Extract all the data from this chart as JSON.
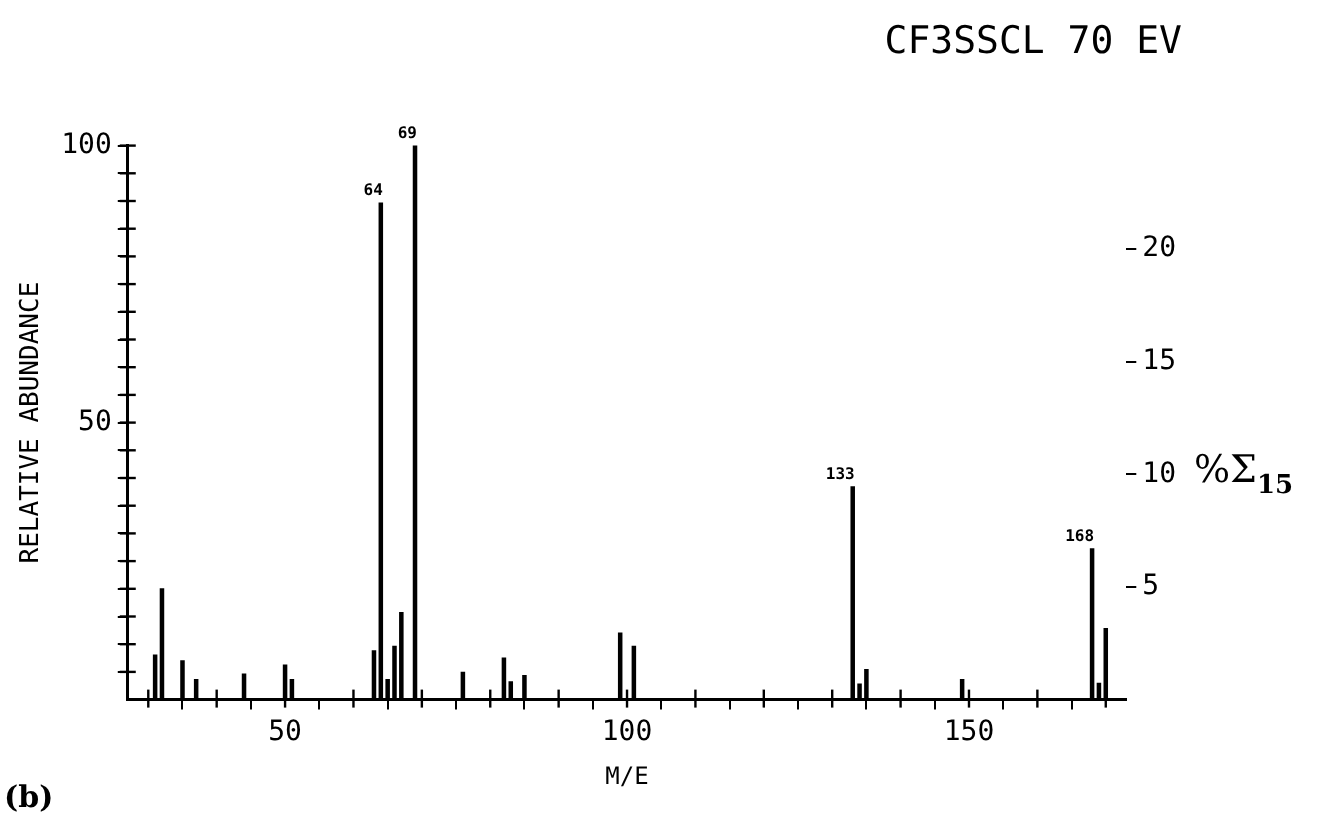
{
  "chart_data": {
    "type": "bar",
    "title": "CF3SSCL 70 EV",
    "xlabel": "M/E",
    "ylabel": "RELATIVE ABUNDANCE",
    "y2label": "%Σ$_{15}$",
    "annotations": [
      "(b)",
      {
        "text": "64",
        "x": 64,
        "y": 89.6
      },
      {
        "text": "69",
        "x": 69,
        "y": 100
      },
      {
        "text": "133",
        "x": 133,
        "y": 38.4
      },
      {
        "text": "168",
        "x": 168,
        "y": 27.2
      }
    ],
    "x": [
      31,
      32,
      35,
      37,
      44,
      50,
      51,
      63,
      64,
      65,
      66,
      67,
      69,
      76,
      82,
      83,
      85,
      99,
      101,
      133,
      134,
      135,
      149,
      168,
      169,
      170
    ],
    "values": [
      8,
      20,
      7,
      3.6,
      4.6,
      6.2,
      3.6,
      8.8,
      89.6,
      3.6,
      9.6,
      15.7,
      100,
      4.9,
      7.5,
      3.2,
      4.3,
      12,
      9.6,
      38.4,
      2.8,
      5.4,
      3.6,
      27.2,
      2.9,
      12.8
    ],
    "color": "#000000",
    "xlim": [
      27,
      173
    ],
    "xticks": [
      {
        "value": 30,
        "label": null
      },
      {
        "value": 40,
        "label": null
      },
      50,
      {
        "value": 60,
        "label": null
      },
      {
        "value": 70,
        "label": null
      },
      {
        "value": 80,
        "label": null
      },
      {
        "value": 90,
        "label": null
      },
      100,
      {
        "value": 110,
        "label": null
      },
      {
        "value": 120,
        "label": null
      },
      {
        "value": 130,
        "label": null
      },
      {
        "value": 140,
        "label": null
      },
      150,
      {
        "value": 160,
        "label": null
      },
      {
        "value": 170,
        "label": null
      }
    ],
    "ylim": [
      0,
      100
    ],
    "yticks": [
      {
        "value": 5,
        "label": null
      },
      {
        "value": 10,
        "label": null
      },
      {
        "value": 15,
        "label": null
      },
      {
        "value": 20,
        "label": null
      },
      {
        "value": 25,
        "label": null
      },
      {
        "value": 30,
        "label": null
      },
      {
        "value": 35,
        "label": null
      },
      {
        "value": 40,
        "label": null
      },
      {
        "value": 45,
        "label": null
      },
      50,
      {
        "value": 55,
        "label": null
      },
      {
        "value": 60,
        "label": null
      },
      {
        "value": 65,
        "label": null
      },
      {
        "value": 70,
        "label": null
      },
      {
        "value": 75,
        "label": null
      },
      {
        "value": 80,
        "label": null
      },
      {
        "value": 85,
        "label": null
      },
      {
        "value": 90,
        "label": null
      },
      {
        "value": 95,
        "label": null
      },
      100
    ],
    "y2lim": [
      0,
      24.6
    ],
    "y2ticks": [
      5,
      10,
      15,
      20
    ],
    "grid": false,
    "legend": false
  }
}
